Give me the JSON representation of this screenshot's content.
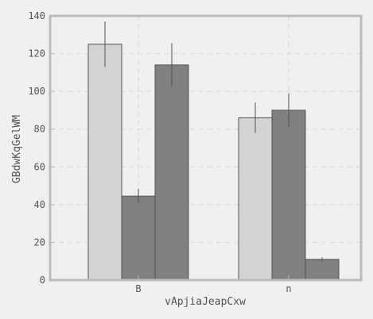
{
  "chart_data": {
    "type": "bar",
    "title": "",
    "xlabel": "vApjiaJeapCxw",
    "ylabel": "GBdwKqGelWM",
    "categories": [
      "B",
      "n"
    ],
    "ylim": [
      0,
      140
    ],
    "yticks": [
      0,
      20,
      40,
      60,
      80,
      100,
      120,
      140
    ],
    "grid": true,
    "series": [
      {
        "values": [
          125,
          86
        ],
        "errors": [
          12,
          8
        ],
        "color": "#d3d3d3"
      },
      {
        "values": [
          44.5,
          90
        ],
        "errors": [
          4,
          9
        ],
        "color": "#808080"
      },
      {
        "values": [
          114,
          11
        ],
        "errors": [
          11.5,
          1
        ],
        "color": "#808080"
      }
    ]
  },
  "colors": {
    "background": "#f0f0f0",
    "plot_border": "#bbbbbb",
    "grid": "#dddddd",
    "bar_edge": "#555555",
    "error_bar": "#555555"
  }
}
